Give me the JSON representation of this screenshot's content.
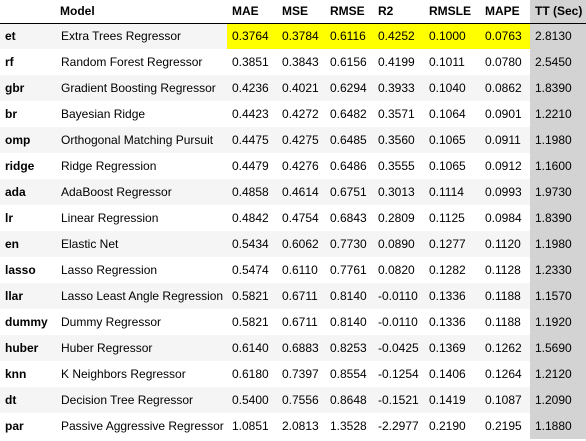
{
  "table": {
    "headers": {
      "index": "",
      "model": "Model",
      "mae": "MAE",
      "mse": "MSE",
      "rmse": "RMSE",
      "r2": "R2",
      "rmsle": "RMSLE",
      "mape": "MAPE",
      "tt": "TT (Sec)"
    },
    "rows": [
      {
        "id": "et",
        "model": "Extra Trees Regressor",
        "mae": "0.3764",
        "mse": "0.3784",
        "rmse": "0.6116",
        "r2": "0.4252",
        "rmsle": "0.1000",
        "mape": "0.0763",
        "tt": "2.8130"
      },
      {
        "id": "rf",
        "model": "Random Forest Regressor",
        "mae": "0.3851",
        "mse": "0.3843",
        "rmse": "0.6156",
        "r2": "0.4199",
        "rmsle": "0.1011",
        "mape": "0.0780",
        "tt": "2.5450"
      },
      {
        "id": "gbr",
        "model": "Gradient Boosting Regressor",
        "mae": "0.4236",
        "mse": "0.4021",
        "rmse": "0.6294",
        "r2": "0.3933",
        "rmsle": "0.1040",
        "mape": "0.0862",
        "tt": "1.8390"
      },
      {
        "id": "br",
        "model": "Bayesian Ridge",
        "mae": "0.4423",
        "mse": "0.4272",
        "rmse": "0.6482",
        "r2": "0.3571",
        "rmsle": "0.1064",
        "mape": "0.0901",
        "tt": "1.2210"
      },
      {
        "id": "omp",
        "model": "Orthogonal Matching Pursuit",
        "mae": "0.4475",
        "mse": "0.4275",
        "rmse": "0.6485",
        "r2": "0.3560",
        "rmsle": "0.1065",
        "mape": "0.0911",
        "tt": "1.1980"
      },
      {
        "id": "ridge",
        "model": "Ridge Regression",
        "mae": "0.4479",
        "mse": "0.4276",
        "rmse": "0.6486",
        "r2": "0.3555",
        "rmsle": "0.1065",
        "mape": "0.0912",
        "tt": "1.1600"
      },
      {
        "id": "ada",
        "model": "AdaBoost Regressor",
        "mae": "0.4858",
        "mse": "0.4614",
        "rmse": "0.6751",
        "r2": "0.3013",
        "rmsle": "0.1114",
        "mape": "0.0993",
        "tt": "1.9730"
      },
      {
        "id": "lr",
        "model": "Linear Regression",
        "mae": "0.4842",
        "mse": "0.4754",
        "rmse": "0.6843",
        "r2": "0.2809",
        "rmsle": "0.1125",
        "mape": "0.0984",
        "tt": "1.8390"
      },
      {
        "id": "en",
        "model": "Elastic Net",
        "mae": "0.5434",
        "mse": "0.6062",
        "rmse": "0.7730",
        "r2": "0.0890",
        "rmsle": "0.1277",
        "mape": "0.1120",
        "tt": "1.1980"
      },
      {
        "id": "lasso",
        "model": "Lasso Regression",
        "mae": "0.5474",
        "mse": "0.6110",
        "rmse": "0.7761",
        "r2": "0.0820",
        "rmsle": "0.1282",
        "mape": "0.1128",
        "tt": "1.2330"
      },
      {
        "id": "llar",
        "model": "Lasso Least Angle Regression",
        "mae": "0.5821",
        "mse": "0.6711",
        "rmse": "0.8140",
        "r2": "-0.0110",
        "rmsle": "0.1336",
        "mape": "0.1188",
        "tt": "1.1570"
      },
      {
        "id": "dummy",
        "model": "Dummy Regressor",
        "mae": "0.5821",
        "mse": "0.6711",
        "rmse": "0.8140",
        "r2": "-0.0110",
        "rmsle": "0.1336",
        "mape": "0.1188",
        "tt": "1.1920"
      },
      {
        "id": "huber",
        "model": "Huber Regressor",
        "mae": "0.6140",
        "mse": "0.6883",
        "rmse": "0.8253",
        "r2": "-0.0425",
        "rmsle": "0.1369",
        "mape": "0.1262",
        "tt": "1.5690"
      },
      {
        "id": "knn",
        "model": "K Neighbors Regressor",
        "mae": "0.6180",
        "mse": "0.7397",
        "rmse": "0.8554",
        "r2": "-0.1254",
        "rmsle": "0.1406",
        "mape": "0.1264",
        "tt": "1.2120"
      },
      {
        "id": "dt",
        "model": "Decision Tree Regressor",
        "mae": "0.5400",
        "mse": "0.7556",
        "rmse": "0.8648",
        "r2": "-0.1521",
        "rmsle": "0.1419",
        "mape": "0.1087",
        "tt": "1.2090"
      },
      {
        "id": "par",
        "model": "Passive Aggressive Regressor",
        "mae": "1.0851",
        "mse": "2.0813",
        "rmse": "1.3528",
        "r2": "-2.2977",
        "rmsle": "0.2190",
        "mape": "0.2195",
        "tt": "1.1880"
      }
    ]
  },
  "colors": {
    "best_highlight": "#ffff00",
    "tt_column_background": "#d3d3d3",
    "row_stripe": "#f5f5f5"
  }
}
